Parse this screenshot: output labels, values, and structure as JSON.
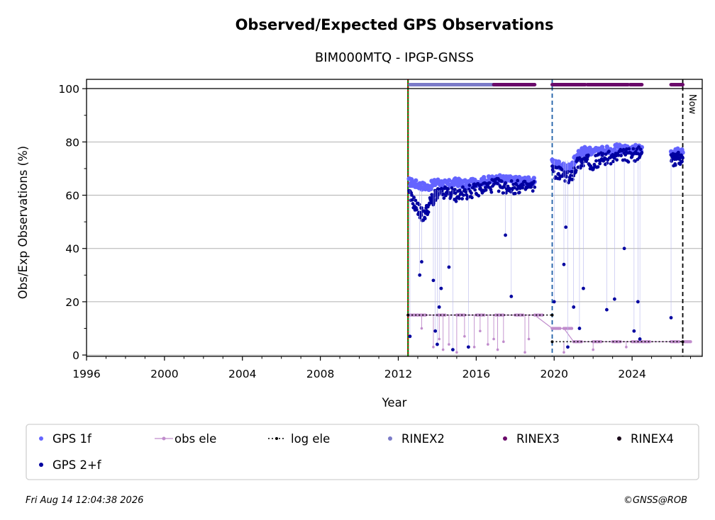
{
  "chart_data": {
    "type": "scatter",
    "title": "Observed/Expected GPS Observations",
    "subtitle": "BIM000MTQ - IPGP-GNSS",
    "xlabel": "Year",
    "ylabel": "Obs/Exp Observations (%)",
    "xlim": [
      1996,
      2027.6
    ],
    "ylim": [
      -0.5,
      103.5
    ],
    "x_ticks": [
      "1996",
      "2000",
      "2004",
      "2008",
      "2012",
      "2016",
      "2020",
      "2024"
    ],
    "y_ticks": [
      "0",
      "20",
      "40",
      "60",
      "80",
      "100"
    ],
    "grid": "horizontal",
    "legend_placement": "bottom",
    "now_label": "Now",
    "vertical_markers": [
      {
        "x": 2012.5,
        "color": "#008000",
        "style": "solid"
      },
      {
        "x": 2012.5,
        "color": "#d40000",
        "style": "dotted"
      },
      {
        "x": 2019.9,
        "color": "#1f5fa8",
        "style": "dashed"
      },
      {
        "x": 2026.6,
        "color": "#000000",
        "style": "dashed"
      }
    ],
    "series": [
      {
        "name": "GPS 1f",
        "color": "#6464ff",
        "segments": [
          {
            "x": [
              2012.55,
              2013,
              2013.5,
              2014,
              2014.5,
              2015,
              2015.5,
              2016,
              2016.5,
              2017,
              2017.5,
              2018,
              2018.5,
              2019.0
            ],
            "y": [
              65,
              64,
              63,
              65,
              64,
              65,
              64,
              65,
              65.5,
              66,
              66,
              65.5,
              65.5,
              65
            ]
          },
          {
            "x": [
              2019.9,
              2020.3,
              2020.8,
              2021.2,
              2021.6,
              2022,
              2022.5,
              2023,
              2023.5,
              2024,
              2024.5
            ],
            "y": [
              72,
              71,
              70,
              75,
              77,
              76,
              77,
              77.5,
              77.5,
              77,
              78
            ]
          },
          {
            "x": [
              2026.0,
              2026.3,
              2026.6
            ],
            "y": [
              75,
              76,
              76
            ]
          }
        ]
      },
      {
        "name": "GPS 2+f",
        "color": "#0000a0",
        "segments": [
          {
            "x": [
              2012.55,
              2013,
              2013.3,
              2013.7,
              2014,
              2014.5,
              2015,
              2015.5,
              2016,
              2016.5,
              2017,
              2017.5,
              2018,
              2018.5,
              2019.0
            ],
            "y": [
              60,
              55,
              52,
              58,
              60,
              61,
              60,
              61,
              62,
              63,
              64,
              63,
              63,
              63,
              63
            ]
          },
          {
            "x": [
              2019.9,
              2020.3,
              2020.8,
              2021.2,
              2021.6,
              2022,
              2022.5,
              2023,
              2023.5,
              2024,
              2024.5
            ],
            "y": [
              69,
              68,
              66,
              72,
              73,
              72,
              74,
              74,
              75,
              75,
              76
            ]
          },
          {
            "x": [
              2026.0,
              2026.3,
              2026.6
            ],
            "y": [
              73,
              74,
              74
            ]
          }
        ],
        "outliers_x": [
          2012.6,
          2013.1,
          2013.2,
          2013.8,
          2013.9,
          2014.0,
          2014.1,
          2014.2,
          2014.6,
          2014.8,
          2015.6,
          2017.5,
          2017.8,
          2020.0,
          2020.5,
          2020.6,
          2020.7,
          2021.0,
          2021.3,
          2021.5,
          2022.7,
          2023.1,
          2023.6,
          2024.1,
          2024.3,
          2024.4,
          2026.0
        ],
        "outliers_y": [
          7,
          30,
          35,
          28,
          9,
          4,
          18,
          25,
          33,
          2,
          3,
          45,
          22,
          20,
          34,
          48,
          3,
          18,
          10,
          25,
          17,
          21,
          40,
          9,
          20,
          6,
          14
        ]
      },
      {
        "name": "obs ele",
        "color": "#c08ccc",
        "x": [
          2012.55,
          2013,
          2014,
          2015,
          2016,
          2017,
          2018,
          2019.0,
          2019.9,
          2020.5,
          2021,
          2022,
          2023,
          2024,
          2024.5,
          2026.0,
          2026.6
        ],
        "y": [
          15,
          15,
          15,
          15,
          15,
          15,
          15,
          15,
          10,
          10,
          5,
          5,
          5,
          5,
          5,
          5,
          5
        ],
        "dips_x": [
          2013.2,
          2013.8,
          2014.1,
          2014.3,
          2014.6,
          2015.0,
          2015.4,
          2015.9,
          2016.2,
          2016.6,
          2016.9,
          2017.1,
          2017.4,
          2018.5,
          2018.7,
          2020.5,
          2022.0,
          2023.7
        ],
        "dips_y": [
          10,
          3,
          6,
          2,
          4,
          1,
          7,
          3,
          9,
          4,
          6,
          2,
          5,
          1,
          6,
          1,
          2,
          3
        ]
      },
      {
        "name": "log ele",
        "color": "#000000",
        "segments": [
          {
            "x": [
              2012.5,
              2019.9
            ],
            "y": [
              15,
              15
            ]
          },
          {
            "x": [
              2019.9,
              2026.6
            ],
            "y": [
              5,
              5
            ]
          }
        ]
      },
      {
        "name": "RINEX2",
        "color": "#7b7bc8",
        "y": 101.5,
        "ranges": [
          [
            2012.6,
            2016.9
          ]
        ]
      },
      {
        "name": "RINEX3",
        "color": "#6a0a6a",
        "y": 101.5,
        "ranges": [
          [
            2016.9,
            2019.0
          ],
          [
            2019.9,
            2021.6
          ],
          [
            2021.7,
            2023.8
          ],
          [
            2023.9,
            2024.5
          ],
          [
            2026.0,
            2026.6
          ]
        ]
      },
      {
        "name": "RINEX4",
        "color": "#1a0a1a",
        "y": 101.5,
        "ranges": []
      }
    ]
  },
  "footer": {
    "timestamp": "Fri Aug 14 12:04:38 2026",
    "credit": "©GNSS@ROB"
  }
}
